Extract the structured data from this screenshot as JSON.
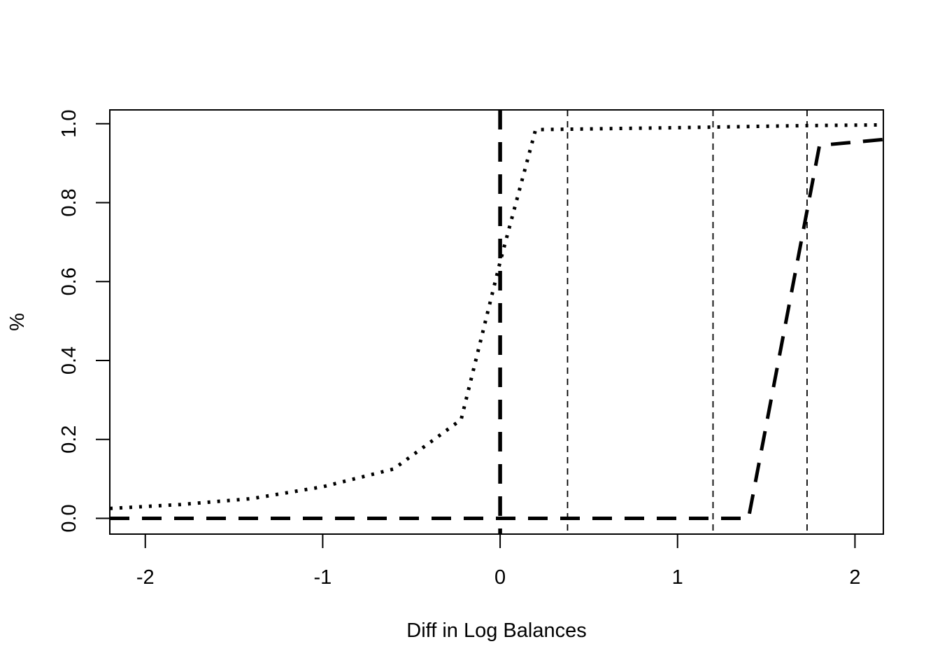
{
  "chart_data": {
    "type": "line",
    "title": "",
    "xlabel": "Diff in Log Balances",
    "ylabel": "%",
    "xlim": [
      -2.2,
      2.16
    ],
    "ylim": [
      -0.04,
      1.035
    ],
    "x_ticks": [
      -2,
      -1,
      0,
      1,
      2
    ],
    "x_tick_labels": [
      "-2",
      "-1",
      "0",
      "1",
      "2"
    ],
    "y_ticks": [
      0.0,
      0.2,
      0.4,
      0.6,
      0.8,
      1.0
    ],
    "y_tick_labels": [
      "0.0",
      "0.2",
      "0.4",
      "0.6",
      "0.8",
      "1.0"
    ],
    "grid": false,
    "legend": "none",
    "colors": {
      "line": "#000000",
      "background": "#ffffff"
    },
    "series": [
      {
        "style": "dotted",
        "x": [
          -2.2,
          -1.8,
          -1.4,
          -1.0,
          -0.6,
          -0.22,
          0.0,
          0.2,
          1.0,
          1.7,
          2.16
        ],
        "y": [
          0.025,
          0.035,
          0.05,
          0.08,
          0.125,
          0.25,
          0.65,
          0.985,
          0.99,
          0.995,
          0.997
        ]
      },
      {
        "style": "dashed",
        "x": [
          -2.2,
          1.4,
          1.8,
          2.16
        ],
        "y": [
          0.0,
          0.0,
          0.945,
          0.96
        ]
      }
    ],
    "vertical_lines": [
      {
        "x": 0.0,
        "style": "thick-dashed"
      },
      {
        "x": 0.38,
        "style": "thin-dashed"
      },
      {
        "x": 1.2,
        "style": "thin-dashed"
      },
      {
        "x": 1.73,
        "style": "thin-dashed"
      }
    ]
  }
}
